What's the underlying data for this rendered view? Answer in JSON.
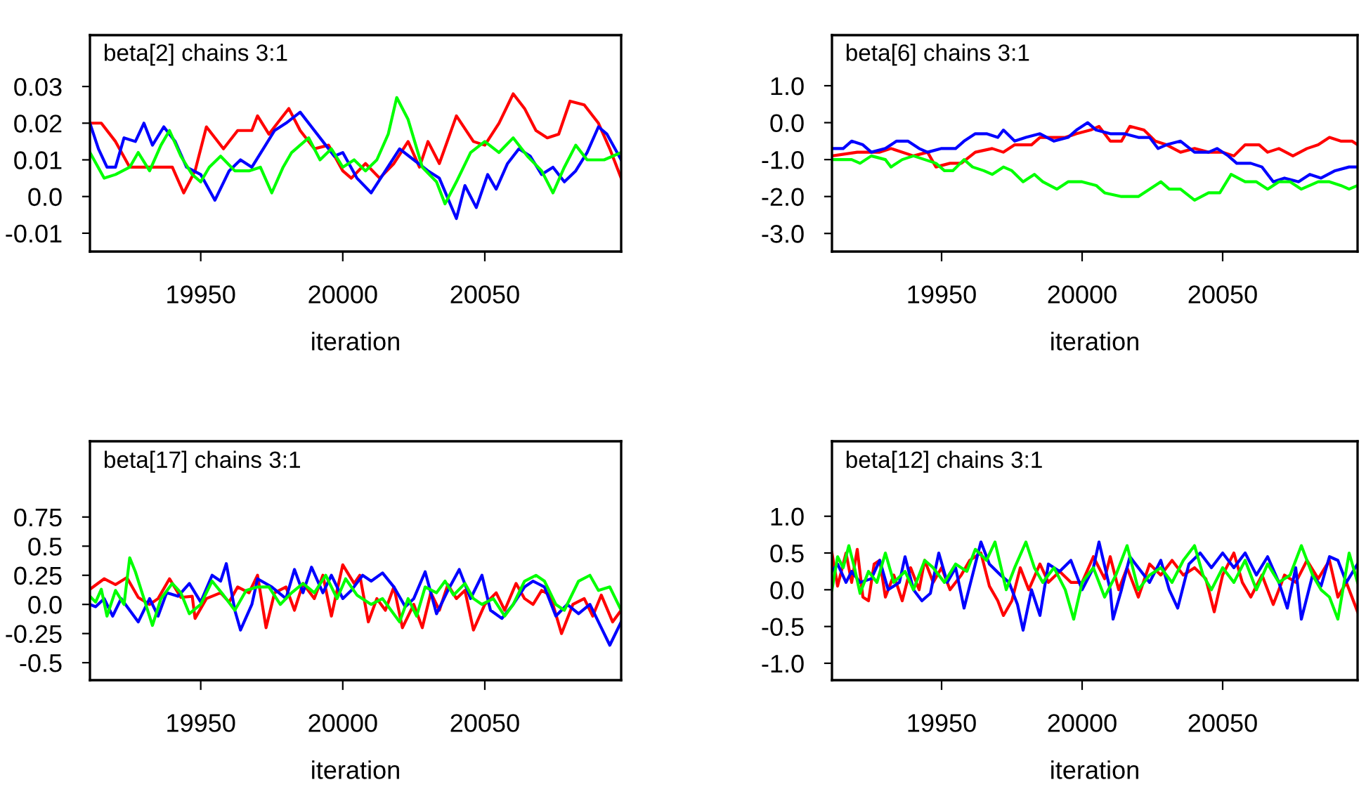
{
  "chart_data": [
    {
      "type": "line",
      "title": "beta[2] chains 3:1",
      "xlabel": "iteration",
      "xlim": [
        19911,
        20098
      ],
      "xticks": [
        19950,
        20000,
        20050
      ],
      "ylim": [
        -0.015,
        0.044
      ],
      "yticks": [
        {
          "value": -0.01,
          "label": "-0.01"
        },
        {
          "value": 0,
          "label": "0.0"
        },
        0.01,
        0.02,
        0.03
      ],
      "grid": false,
      "series": [
        {
          "color": "#ff0000",
          "x": [
            19911,
            19915,
            19920,
            19925,
            19935,
            19940,
            19944,
            19948,
            19952,
            19958,
            19963,
            19968,
            19970,
            19974,
            19978,
            19981,
            19985,
            19990,
            19995,
            20000,
            20003,
            20008,
            20013,
            20018,
            20023,
            20027,
            20030,
            20034,
            20040,
            20046,
            20050,
            20055,
            20060,
            20064,
            20068,
            20072,
            20076,
            20080,
            20085,
            20090,
            20094,
            20098
          ],
          "values": [
            0.02,
            0.02,
            0.015,
            0.008,
            0.008,
            0.008,
            0.001,
            0.007,
            0.019,
            0.013,
            0.018,
            0.018,
            0.022,
            0.017,
            0.021,
            0.024,
            0.018,
            0.013,
            0.014,
            0.007,
            0.005,
            0.009,
            0.005,
            0.009,
            0.015,
            0.008,
            0.015,
            0.009,
            0.022,
            0.015,
            0.014,
            0.02,
            0.028,
            0.024,
            0.018,
            0.016,
            0.017,
            0.026,
            0.025,
            0.02,
            0.013,
            0.005
          ]
        },
        {
          "color": "#0000ff",
          "x": [
            19911,
            19914,
            19917,
            19920,
            19923,
            19927,
            19930,
            19933,
            19937,
            19941,
            19945,
            19950,
            19955,
            19960,
            19964,
            19968,
            19972,
            19976,
            19980,
            19985,
            19989,
            19993,
            19997,
            20000,
            20005,
            20010,
            20015,
            20020,
            20025,
            20030,
            20034,
            20040,
            20043,
            20047,
            20051,
            20054,
            20058,
            20062,
            20066,
            20070,
            20074,
            20078,
            20082,
            20086,
            20090,
            20093,
            20098
          ],
          "values": [
            0.02,
            0.013,
            0.008,
            0.008,
            0.016,
            0.015,
            0.02,
            0.014,
            0.019,
            0.015,
            0.008,
            0.006,
            -0.001,
            0.007,
            0.01,
            0.008,
            0.013,
            0.018,
            0.02,
            0.023,
            0.019,
            0.015,
            0.011,
            0.012,
            0.005,
            0.001,
            0.007,
            0.013,
            0.01,
            0.007,
            0.005,
            -0.006,
            0.003,
            -0.003,
            0.006,
            0.002,
            0.009,
            0.013,
            0.011,
            0.006,
            0.008,
            0.004,
            0.007,
            0.012,
            0.019,
            0.017,
            0.01
          ]
        },
        {
          "color": "#00ff00",
          "x": [
            19911,
            19916,
            19920,
            19925,
            19928,
            19932,
            19936,
            19939,
            19943,
            19947,
            19950,
            19953,
            19957,
            19962,
            19967,
            19971,
            19975,
            19979,
            19982,
            19988,
            19992,
            19996,
            20000,
            20004,
            20008,
            20012,
            20016,
            20019,
            20023,
            20028,
            20033,
            20036,
            20040,
            20045,
            20050,
            20055,
            20060,
            20065,
            20070,
            20074,
            20078,
            20082,
            20086,
            20092,
            20098
          ],
          "values": [
            0.012,
            0.005,
            0.006,
            0.008,
            0.012,
            0.007,
            0.014,
            0.018,
            0.011,
            0.006,
            0.004,
            0.008,
            0.011,
            0.007,
            0.007,
            0.008,
            0.001,
            0.008,
            0.012,
            0.016,
            0.01,
            0.013,
            0.008,
            0.01,
            0.007,
            0.01,
            0.017,
            0.027,
            0.021,
            0.008,
            0.004,
            -0.002,
            0.004,
            0.012,
            0.015,
            0.012,
            0.016,
            0.011,
            0.007,
            0.001,
            0.008,
            0.014,
            0.01,
            0.01,
            0.012
          ]
        }
      ]
    },
    {
      "type": "line",
      "title": "beta[6] chains 3:1",
      "xlabel": "iteration",
      "xlim": [
        19911,
        20098
      ],
      "xticks": [
        19950,
        20000,
        20050
      ],
      "ylim": [
        -3.49,
        2.37
      ],
      "yticks": [
        {
          "value": -3,
          "label": "-3.0"
        },
        {
          "value": -2,
          "label": "-2.0"
        },
        {
          "value": -1,
          "label": "-1.0"
        },
        {
          "value": 0,
          "label": "0.0"
        },
        {
          "value": 1,
          "label": "1.0"
        }
      ],
      "grid": false,
      "series": [
        {
          "color": "#ff0000",
          "x": [
            19911,
            19920,
            19928,
            19932,
            19940,
            19945,
            19948,
            19953,
            19957,
            19962,
            19968,
            19972,
            19976,
            19982,
            19985,
            19990,
            19994,
            19998,
            20003,
            20006,
            20010,
            20014,
            20017,
            20022,
            20026,
            20030,
            20035,
            20040,
            20045,
            20050,
            20054,
            20058,
            20063,
            20066,
            20070,
            20075,
            20080,
            20084,
            20088,
            20092,
            20096,
            20098
          ],
          "values": [
            -0.9,
            -0.8,
            -0.8,
            -0.7,
            -0.9,
            -0.8,
            -1.2,
            -1.1,
            -1.1,
            -0.8,
            -0.7,
            -0.8,
            -0.6,
            -0.6,
            -0.4,
            -0.4,
            -0.4,
            -0.3,
            -0.2,
            -0.1,
            -0.5,
            -0.5,
            -0.1,
            -0.2,
            -0.5,
            -0.6,
            -0.8,
            -0.7,
            -0.8,
            -0.8,
            -0.9,
            -0.6,
            -0.6,
            -0.8,
            -0.7,
            -0.9,
            -0.7,
            -0.6,
            -0.4,
            -0.5,
            -0.5,
            -0.6
          ]
        },
        {
          "color": "#0000ff",
          "x": [
            19911,
            19915,
            19918,
            19922,
            19925,
            19930,
            19934,
            19938,
            19942,
            19945,
            19950,
            19955,
            19958,
            19962,
            19966,
            19970,
            19972,
            19976,
            19980,
            19985,
            19990,
            19995,
            19998,
            20002,
            20005,
            20010,
            20015,
            20020,
            20024,
            20027,
            20030,
            20035,
            20040,
            20045,
            20048,
            20052,
            20055,
            20060,
            20064,
            20068,
            20072,
            20077,
            20081,
            20085,
            20090,
            20095,
            20098
          ],
          "values": [
            -0.7,
            -0.7,
            -0.5,
            -0.6,
            -0.8,
            -0.7,
            -0.5,
            -0.5,
            -0.7,
            -0.8,
            -0.7,
            -0.7,
            -0.5,
            -0.3,
            -0.3,
            -0.4,
            -0.2,
            -0.5,
            -0.4,
            -0.3,
            -0.5,
            -0.4,
            -0.2,
            0.0,
            -0.2,
            -0.3,
            -0.3,
            -0.4,
            -0.4,
            -0.7,
            -0.6,
            -0.5,
            -0.8,
            -0.8,
            -0.7,
            -0.9,
            -1.1,
            -1.1,
            -1.2,
            -1.6,
            -1.5,
            -1.6,
            -1.4,
            -1.5,
            -1.3,
            -1.2,
            -1.2
          ]
        },
        {
          "color": "#00ff00",
          "x": [
            19911,
            19914,
            19918,
            19921,
            19925,
            19930,
            19932,
            19936,
            19940,
            19944,
            19948,
            19951,
            19954,
            19958,
            19961,
            19965,
            19968,
            19972,
            19975,
            19979,
            19983,
            19986,
            19991,
            19995,
            20000,
            20005,
            20008,
            20014,
            20020,
            20024,
            20028,
            20031,
            20035,
            20040,
            20045,
            20049,
            20053,
            20058,
            20062,
            20066,
            20070,
            20074,
            20078,
            20084,
            20088,
            20092,
            20095,
            20098
          ],
          "values": [
            -1.0,
            -1.0,
            -1.0,
            -1.1,
            -0.9,
            -1.0,
            -1.2,
            -1.0,
            -0.9,
            -1.0,
            -1.1,
            -1.3,
            -1.3,
            -1.0,
            -1.2,
            -1.3,
            -1.4,
            -1.2,
            -1.3,
            -1.6,
            -1.4,
            -1.6,
            -1.8,
            -1.6,
            -1.6,
            -1.7,
            -1.9,
            -2.0,
            -2.0,
            -1.8,
            -1.6,
            -1.8,
            -1.8,
            -2.1,
            -1.9,
            -1.9,
            -1.4,
            -1.6,
            -1.6,
            -1.8,
            -1.6,
            -1.6,
            -1.8,
            -1.6,
            -1.6,
            -1.7,
            -1.8,
            -1.7
          ]
        }
      ]
    },
    {
      "type": "line",
      "title": "beta[17] chains 3:1",
      "xlabel": "iteration",
      "xlim": [
        19911,
        20098
      ],
      "xticks": [
        19950,
        20000,
        20050
      ],
      "ylim": [
        -0.65,
        1.4
      ],
      "yticks": [
        -0.5,
        -0.25,
        {
          "value": 0,
          "label": "0.0"
        },
        0.25,
        0.5,
        0.75
      ],
      "grid": false,
      "series": [
        {
          "color": "#ff0000",
          "x": [
            19911,
            19916,
            19920,
            19924,
            19928,
            19932,
            19935,
            19939,
            19943,
            19947,
            19948,
            19952,
            19957,
            19960,
            19963,
            19967,
            19970,
            19973,
            19976,
            19980,
            19983,
            19986,
            19990,
            19993,
            19996,
            20000,
            20004,
            20006,
            20009,
            20012,
            20015,
            20018,
            20021,
            20025,
            20028,
            20031,
            20034,
            20037,
            20040,
            20043,
            20046,
            20050,
            20054,
            20057,
            20061,
            20064,
            20067,
            20070,
            20073,
            20077,
            20081,
            20085,
            20088,
            20091,
            20095,
            20098
          ],
          "values": [
            0.13,
            0.22,
            0.17,
            0.23,
            0.06,
            0.0,
            0.05,
            0.22,
            0.06,
            0.07,
            -0.12,
            0.05,
            0.1,
            0.02,
            0.15,
            0.1,
            0.25,
            -0.2,
            0.1,
            0.15,
            -0.05,
            0.18,
            0.05,
            0.25,
            -0.1,
            0.34,
            0.18,
            0.25,
            -0.15,
            0.05,
            -0.05,
            0.15,
            -0.2,
            0.0,
            -0.2,
            0.1,
            -0.05,
            0.17,
            0.05,
            0.12,
            -0.22,
            0.0,
            0.1,
            -0.05,
            0.18,
            0.05,
            0.0,
            0.12,
            0.08,
            -0.25,
            0.0,
            0.05,
            -0.1,
            0.08,
            -0.15,
            -0.05
          ]
        },
        {
          "color": "#0000ff",
          "x": [
            19911,
            19913,
            19916,
            19919,
            19922,
            19925,
            19928,
            19932,
            19935,
            19938,
            19942,
            19946,
            19950,
            19954,
            19957,
            19959,
            19962,
            19964,
            19968,
            19970,
            19975,
            19980,
            19983,
            19986,
            19989,
            19993,
            19996,
            20000,
            20003,
            20007,
            20010,
            20014,
            20018,
            20022,
            20025,
            20029,
            20033,
            20037,
            20041,
            20045,
            20049,
            20052,
            20056,
            20060,
            20064,
            20067,
            20071,
            20075,
            20079,
            20083,
            20087,
            20091,
            20094,
            20098
          ],
          "values": [
            0.0,
            -0.02,
            0.05,
            -0.1,
            0.05,
            -0.05,
            -0.15,
            0.05,
            -0.1,
            0.1,
            0.07,
            0.18,
            0.02,
            0.25,
            0.2,
            0.35,
            -0.05,
            -0.22,
            0.0,
            0.22,
            0.15,
            0.05,
            0.3,
            0.1,
            0.32,
            0.1,
            0.25,
            0.05,
            0.12,
            0.25,
            0.2,
            0.27,
            0.15,
            -0.02,
            0.05,
            0.28,
            -0.08,
            0.12,
            0.3,
            0.05,
            0.25,
            -0.05,
            -0.12,
            0.0,
            0.15,
            0.2,
            0.15,
            -0.1,
            0.0,
            -0.08,
            0.0,
            -0.2,
            -0.35,
            -0.15
          ]
        },
        {
          "color": "#00ff00",
          "x": [
            19911,
            19913,
            19915,
            19917,
            19920,
            19923,
            19925,
            19927,
            19930,
            19933,
            19936,
            19940,
            19943,
            19946,
            19950,
            19954,
            19958,
            19962,
            19966,
            19970,
            19974,
            19978,
            19982,
            19986,
            19990,
            19994,
            19998,
            20001,
            20005,
            20010,
            20014,
            20017,
            20020,
            20023,
            20026,
            20029,
            20033,
            20036,
            20039,
            20043,
            20046,
            20049,
            20053,
            20057,
            20060,
            20064,
            20068,
            20071,
            20075,
            20078,
            20083,
            20087,
            20090,
            20094,
            20098
          ],
          "values": [
            0.07,
            0.02,
            0.13,
            -0.1,
            0.12,
            0.0,
            0.4,
            0.28,
            0.05,
            -0.18,
            0.05,
            0.18,
            0.1,
            -0.08,
            0.0,
            0.2,
            0.08,
            -0.05,
            0.12,
            0.15,
            0.15,
            0.0,
            0.1,
            0.18,
            0.1,
            0.25,
            0.05,
            0.22,
            0.08,
            0.0,
            0.05,
            -0.05,
            -0.15,
            0.05,
            -0.1,
            0.15,
            0.1,
            0.2,
            0.08,
            0.18,
            0.05,
            0.0,
            0.05,
            -0.1,
            0.0,
            0.2,
            0.25,
            0.2,
            0.0,
            -0.05,
            0.2,
            0.25,
            0.12,
            0.15,
            -0.05
          ]
        }
      ]
    },
    {
      "type": "line",
      "title": "beta[12] chains 3:1",
      "xlabel": "iteration",
      "xlim": [
        19911,
        20098
      ],
      "xticks": [
        19950,
        20000,
        20050
      ],
      "ylim": [
        -1.23,
        2.02
      ],
      "yticks": [
        {
          "value": -1,
          "label": "-1.0"
        },
        -0.5,
        {
          "value": 0,
          "label": "0.0"
        },
        0.5,
        {
          "value": 1,
          "label": "1.0"
        }
      ],
      "grid": false,
      "series": [
        {
          "color": "#ff0000",
          "x": [
            19911,
            19913,
            19916,
            19918,
            19920,
            19922,
            19924,
            19926,
            19928,
            19930,
            19933,
            19936,
            19939,
            19942,
            19944,
            19947,
            19950,
            19953,
            19957,
            19960,
            19964,
            19967,
            19970,
            19972,
            19975,
            19978,
            19981,
            19985,
            19988,
            19992,
            19996,
            20000,
            20004,
            20008,
            20010,
            20013,
            20016,
            20020,
            20024,
            20028,
            20032,
            20036,
            20040,
            20044,
            20047,
            20050,
            20054,
            20057,
            20060,
            20064,
            20068,
            20072,
            20076,
            20080,
            20084,
            20088,
            20091,
            20094,
            20098
          ],
          "values": [
            0.5,
            0.05,
            0.5,
            0.1,
            0.55,
            -0.1,
            -0.15,
            0.35,
            0.4,
            -0.1,
            0.2,
            -0.15,
            0.3,
            0.0,
            0.4,
            0.1,
            0.3,
            0.0,
            0.2,
            0.4,
            0.5,
            0.05,
            -0.15,
            -0.35,
            -0.15,
            0.3,
            0.0,
            0.35,
            0.1,
            0.25,
            0.1,
            0.1,
            0.45,
            0.15,
            0.45,
            0.0,
            0.3,
            -0.1,
            0.35,
            0.2,
            0.4,
            0.2,
            0.3,
            0.15,
            -0.3,
            0.2,
            0.5,
            0.1,
            -0.1,
            0.2,
            -0.2,
            0.2,
            0.1,
            0.4,
            0.15,
            0.4,
            -0.1,
            0.1,
            -0.3
          ]
        },
        {
          "color": "#0000ff",
          "x": [
            19911,
            19913,
            19916,
            19918,
            19921,
            19925,
            19928,
            19931,
            19935,
            19937,
            19940,
            19943,
            19946,
            19949,
            19952,
            19955,
            19958,
            19961,
            19964,
            19967,
            19971,
            19974,
            19977,
            19979,
            19982,
            19985,
            19988,
            19992,
            19996,
            20000,
            20004,
            20006,
            20010,
            20011,
            20014,
            20017,
            20020,
            20024,
            20028,
            20031,
            20034,
            20038,
            20042,
            20046,
            20050,
            20054,
            20058,
            20062,
            20066,
            20070,
            20073,
            20076,
            20078,
            20082,
            20085,
            20088,
            20091,
            20094,
            20098
          ],
          "values": [
            0.25,
            0.35,
            0.1,
            0.25,
            0.1,
            0.15,
            0.4,
            0.0,
            0.1,
            0.45,
            0.0,
            -0.15,
            -0.05,
            0.5,
            0.1,
            0.3,
            -0.25,
            0.2,
            0.65,
            0.35,
            0.2,
            0.1,
            -0.2,
            -0.55,
            0.0,
            -0.35,
            0.35,
            0.25,
            0.4,
            0.0,
            0.3,
            0.65,
            0.0,
            -0.4,
            0.0,
            0.45,
            0.3,
            0.1,
            0.4,
            0.0,
            -0.25,
            0.35,
            0.5,
            0.3,
            0.5,
            0.3,
            0.5,
            0.2,
            0.45,
            0.1,
            -0.25,
            0.3,
            -0.4,
            0.2,
            0.05,
            0.45,
            0.4,
            0.1,
            0.35
          ]
        },
        {
          "color": "#00ff00",
          "x": [
            19911,
            19913,
            19915,
            19917,
            19919,
            19921,
            19924,
            19927,
            19930,
            19933,
            19937,
            19940,
            19944,
            19947,
            19951,
            19955,
            19959,
            19962,
            19966,
            19969,
            19973,
            19976,
            19980,
            19983,
            19986,
            19990,
            19994,
            19997,
            20000,
            20004,
            20008,
            20012,
            20016,
            20020,
            20024,
            20028,
            20032,
            20036,
            20040,
            20043,
            20046,
            20050,
            20054,
            20058,
            20062,
            20066,
            20070,
            20074,
            20078,
            20082,
            20085,
            20088,
            20091,
            20095,
            20098
          ],
          "values": [
            0.0,
            0.45,
            0.3,
            0.6,
            0.3,
            -0.05,
            0.25,
            0.1,
            0.5,
            0.1,
            0.25,
            0.0,
            0.4,
            0.3,
            0.1,
            0.35,
            0.25,
            0.55,
            0.4,
            0.65,
            0.0,
            0.3,
            0.65,
            0.3,
            0.1,
            0.3,
            0.0,
            -0.4,
            0.1,
            0.3,
            -0.1,
            0.2,
            0.6,
            0.0,
            0.2,
            0.3,
            0.1,
            0.4,
            0.6,
            0.2,
            0.0,
            0.3,
            0.1,
            0.4,
            0.0,
            0.35,
            0.1,
            0.2,
            0.6,
            0.2,
            0.0,
            -0.1,
            -0.4,
            0.5,
            0.1
          ]
        }
      ]
    }
  ]
}
